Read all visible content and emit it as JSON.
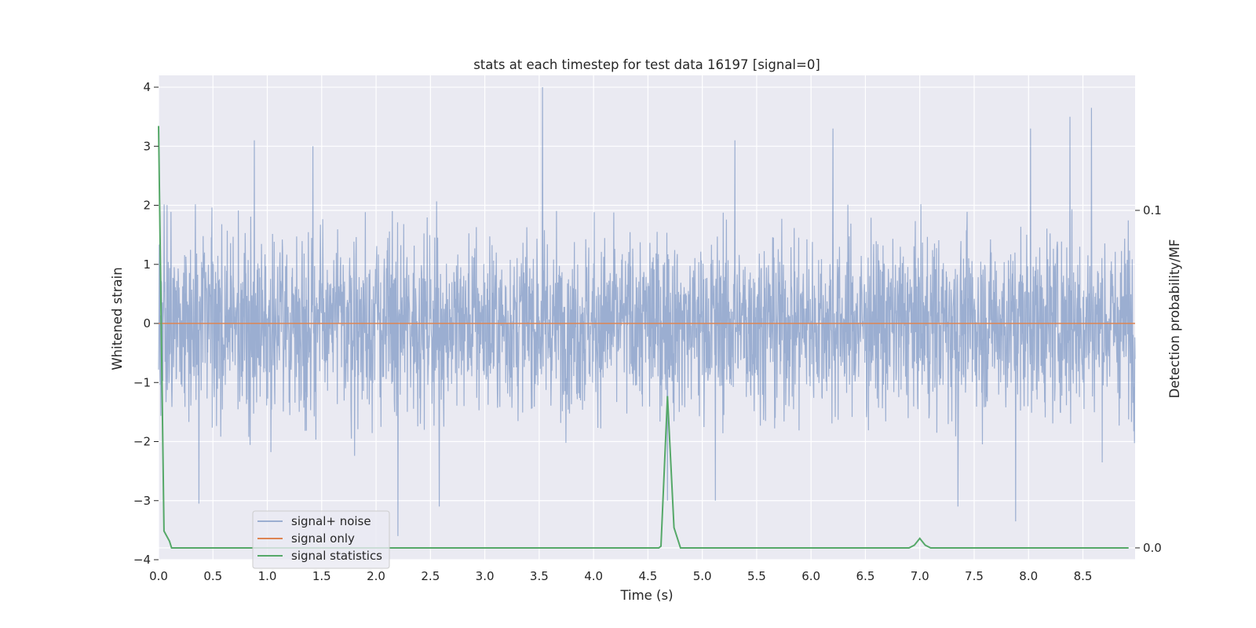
{
  "chart_data": {
    "type": "line",
    "title": "stats at each timestep for test data 16197 [signal=0]",
    "xlabel": "Time (s)",
    "ylabel": "Whitened strain",
    "y2label": "Detection probability/MF",
    "xlim": [
      0.0,
      8.98
    ],
    "ylim": [
      -4.0,
      4.2
    ],
    "y2lim": [
      -0.0035,
      0.14
    ],
    "xticks": [
      "0.0",
      "0.5",
      "1.0",
      "1.5",
      "2.0",
      "2.5",
      "3.0",
      "3.5",
      "4.0",
      "4.5",
      "5.0",
      "5.5",
      "6.0",
      "6.5",
      "7.0",
      "7.5",
      "8.0",
      "8.5"
    ],
    "yticks": [
      "4",
      "3",
      "2",
      "1",
      "0",
      "−1",
      "−2",
      "−3",
      "−4"
    ],
    "y2ticks": [
      "0.1",
      "0.0"
    ],
    "grid": true,
    "legend_position": "lower-left",
    "series": [
      {
        "name": "signal+ noise",
        "axis": "left",
        "color": "#4c72b0",
        "opacity": 0.5,
        "note": "dense whitened noise, roughly within ±2.5 with spikes up to ~4.0 and down to ~-3.6",
        "x_range": [
          0.0,
          8.98
        ],
        "peaks": [
          {
            "x": 0.88,
            "y": 3.1
          },
          {
            "x": 1.42,
            "y": 3.0
          },
          {
            "x": 3.53,
            "y": 4.0
          },
          {
            "x": 5.3,
            "y": 3.1
          },
          {
            "x": 6.2,
            "y": 3.3
          },
          {
            "x": 8.02,
            "y": 3.3
          },
          {
            "x": 8.38,
            "y": 3.5
          },
          {
            "x": 8.58,
            "y": 3.65
          },
          {
            "x": 2.2,
            "y": -3.6
          },
          {
            "x": 2.58,
            "y": -3.1
          },
          {
            "x": 4.68,
            "y": -3.0
          },
          {
            "x": 5.12,
            "y": -3.0
          },
          {
            "x": 7.35,
            "y": -3.1
          },
          {
            "x": 7.88,
            "y": -3.35
          },
          {
            "x": 0.37,
            "y": -3.05
          }
        ]
      },
      {
        "name": "signal only",
        "axis": "left",
        "color": "#dd8452",
        "x": [
          0.0,
          8.98
        ],
        "y": [
          0.0,
          0.0
        ]
      },
      {
        "name": "signal statistics",
        "axis": "right",
        "color": "#55a868",
        "x": [
          0.0,
          0.05,
          0.1,
          0.12,
          4.6,
          4.62,
          4.68,
          4.74,
          4.8,
          6.9,
          6.95,
          7.0,
          7.05,
          7.1,
          8.92
        ],
        "y": [
          0.125,
          0.005,
          0.002,
          0.0,
          0.0,
          0.0005,
          0.045,
          0.006,
          0.0,
          0.0,
          0.0008,
          0.0028,
          0.0008,
          0.0,
          0.0
        ]
      }
    ]
  }
}
